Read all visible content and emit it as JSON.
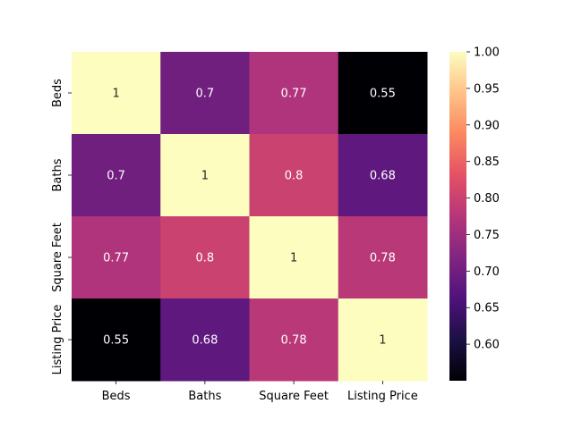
{
  "chart_data": {
    "type": "heatmap",
    "title": "",
    "xlabel": "",
    "ylabel": "",
    "x_categories": [
      "Beds",
      "Baths",
      "Square Feet",
      "Listing Price"
    ],
    "y_categories": [
      "Beds",
      "Baths",
      "Square Feet",
      "Listing Price"
    ],
    "values": [
      [
        1,
        0.7,
        0.77,
        0.55
      ],
      [
        0.7,
        1,
        0.8,
        0.68
      ],
      [
        0.77,
        0.8,
        1,
        0.78
      ],
      [
        0.55,
        0.68,
        0.78,
        1
      ]
    ],
    "cell_labels": [
      [
        "1",
        "0.7",
        "0.77",
        "0.55"
      ],
      [
        "0.7",
        "1",
        "0.8",
        "0.68"
      ],
      [
        "0.77",
        "0.8",
        "1",
        "0.78"
      ],
      [
        "0.55",
        "0.68",
        "0.78",
        "1"
      ]
    ],
    "colormap": "magma",
    "vmin": 0.55,
    "vmax": 1.0,
    "colorbar": {
      "ticks": [
        0.6,
        0.65,
        0.7,
        0.75,
        0.8,
        0.85,
        0.9,
        0.95,
        1.0
      ],
      "tick_labels": [
        "0.60",
        "0.65",
        "0.70",
        "0.75",
        "0.80",
        "0.85",
        "0.90",
        "0.95",
        "1.00"
      ],
      "placement": "right"
    },
    "grid": false
  }
}
